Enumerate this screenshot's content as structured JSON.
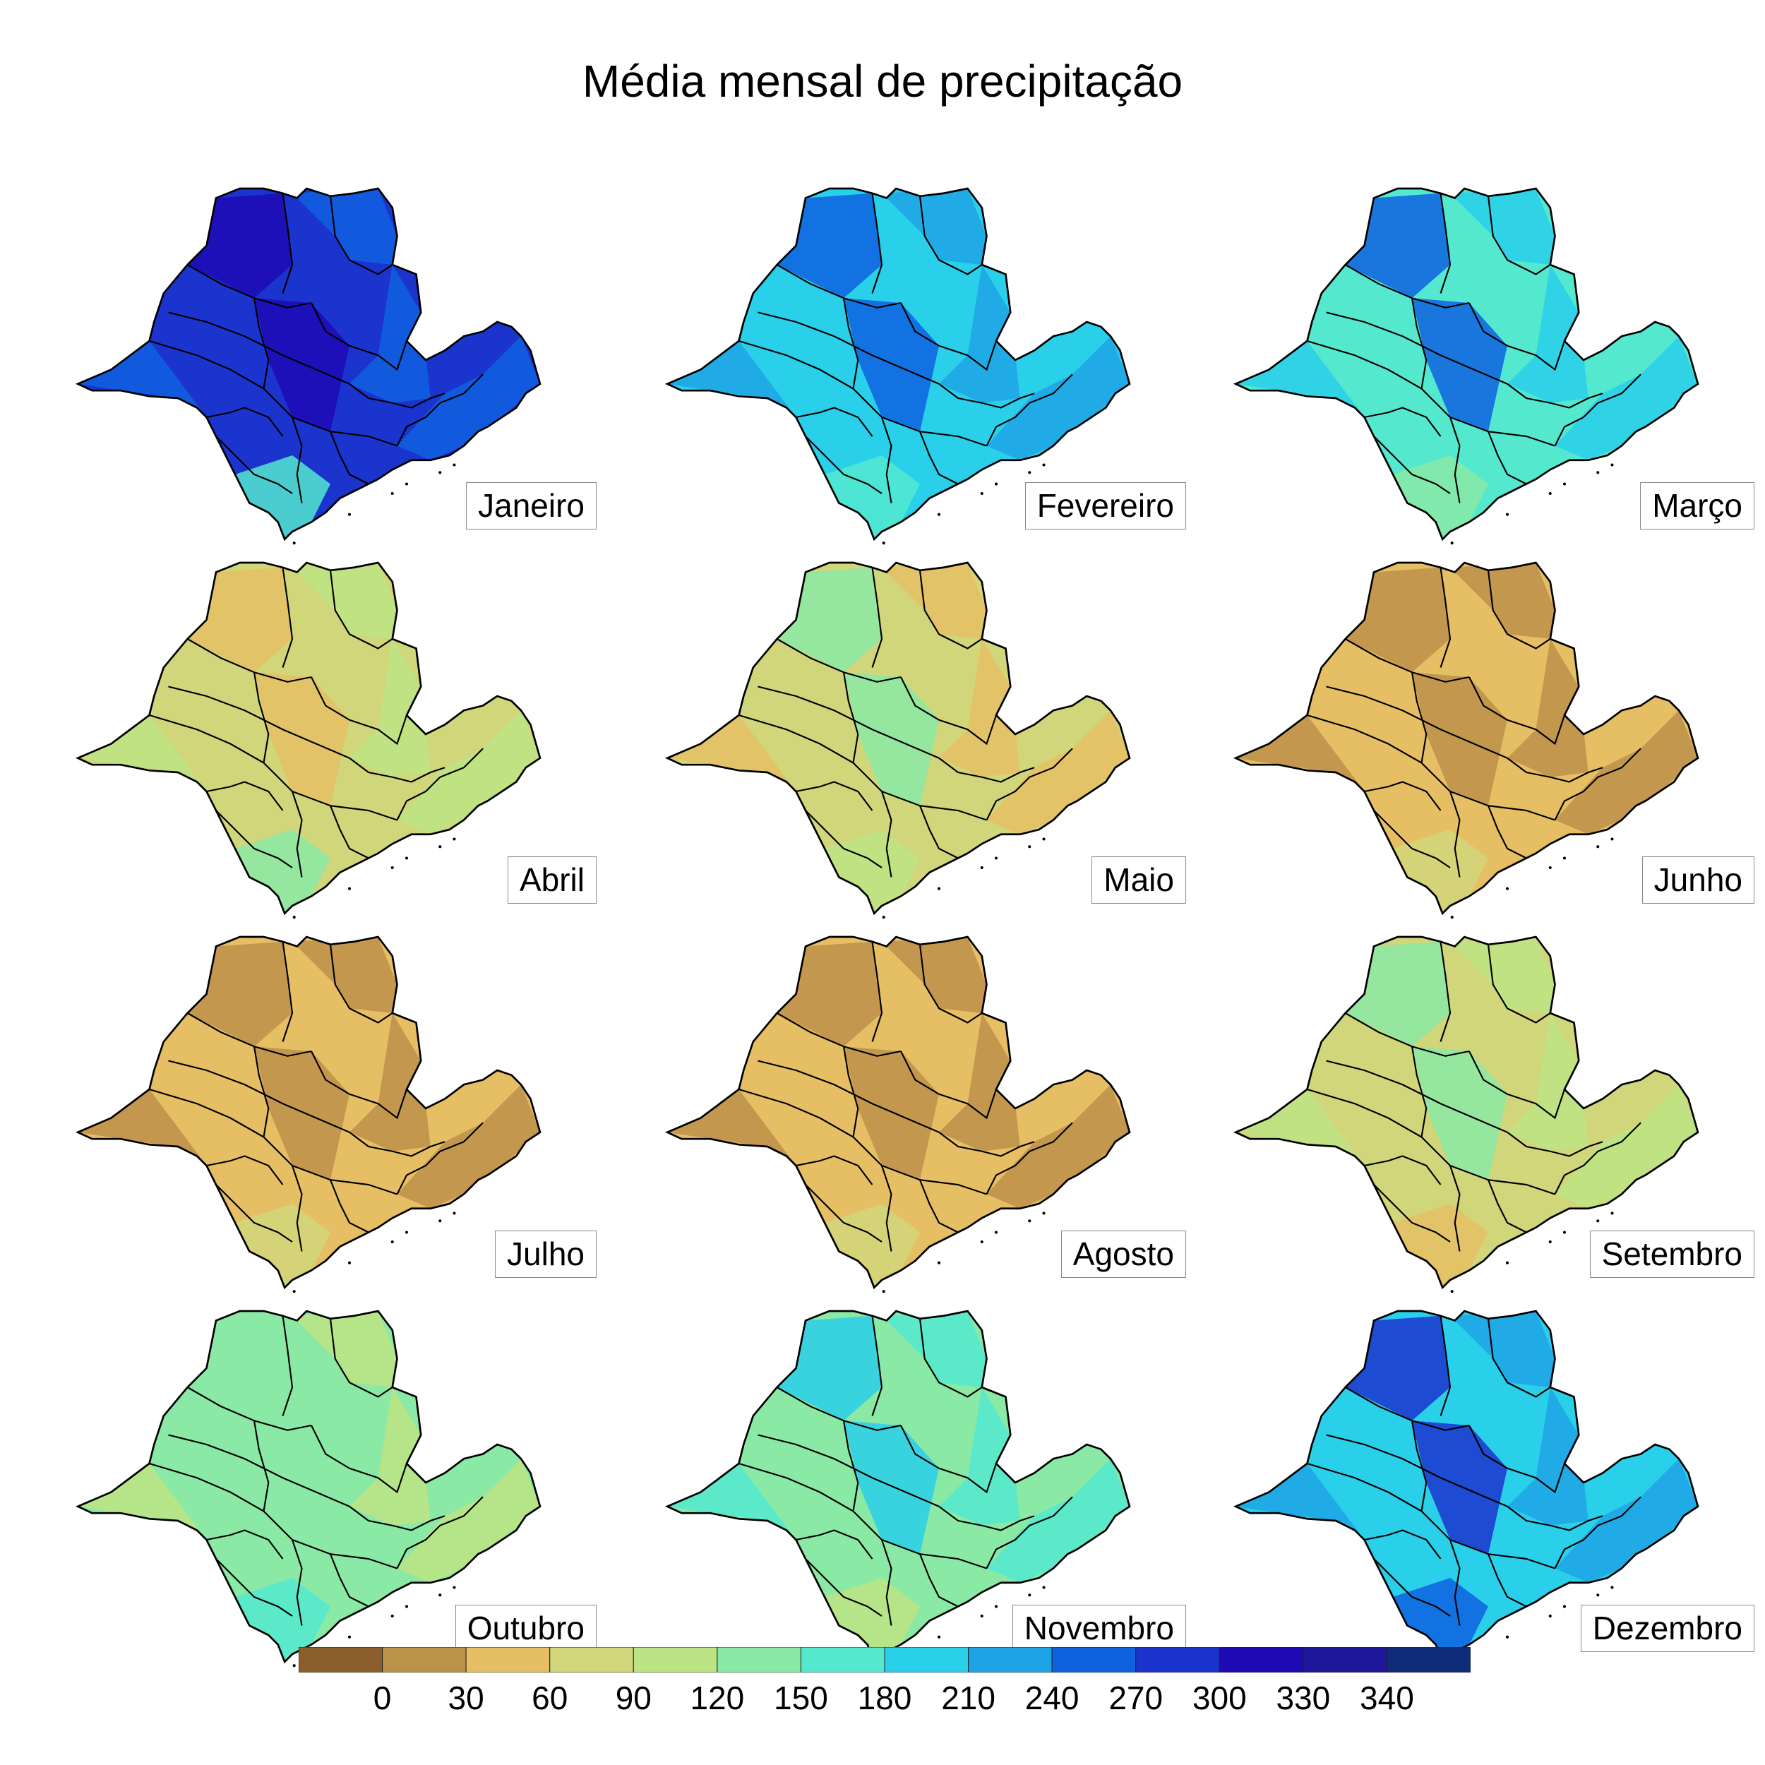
{
  "title": "Média mensal de precipitação",
  "colorbar": {
    "colors": [
      "#8b5e2b",
      "#bc914a",
      "#e6bf65",
      "#d1d67b",
      "#bde484",
      "#8be9a6",
      "#54e9cf",
      "#2acfe9",
      "#1ea4e6",
      "#0f62df",
      "#1b34cd",
      "#1f0bb5",
      "#20189a",
      "#0f2c78"
    ],
    "ticks": [
      "0",
      "30",
      "60",
      "90",
      "120",
      "150",
      "180",
      "210",
      "240",
      "270",
      "300",
      "330",
      "340"
    ]
  },
  "months": [
    {
      "name": "Janeiro",
      "primary": "#1b34cd",
      "secondary": "#0f62df",
      "accent": "#54e9cf",
      "shade": "#1f0bb5"
    },
    {
      "name": "Fevereiro",
      "primary": "#2acfe9",
      "secondary": "#1ea4e6",
      "accent": "#54e9cf",
      "shade": "#0f62df"
    },
    {
      "name": "Março",
      "primary": "#54e9cf",
      "secondary": "#2acfe9",
      "accent": "#8be9a6",
      "shade": "#0f62df"
    },
    {
      "name": "Abril",
      "primary": "#d1d67b",
      "secondary": "#bde484",
      "accent": "#8be9a6",
      "shade": "#e6bf65"
    },
    {
      "name": "Maio",
      "primary": "#d1d67b",
      "secondary": "#e6bf65",
      "accent": "#bde484",
      "shade": "#8be9a6"
    },
    {
      "name": "Junho",
      "primary": "#e6bf65",
      "secondary": "#bc914a",
      "accent": "#d1d67b",
      "shade": "#bc914a"
    },
    {
      "name": "Julho",
      "primary": "#e6bf65",
      "secondary": "#bc914a",
      "accent": "#d1d67b",
      "shade": "#bc914a"
    },
    {
      "name": "Agosto",
      "primary": "#e6bf65",
      "secondary": "#bc914a",
      "accent": "#d1d67b",
      "shade": "#bc914a"
    },
    {
      "name": "Setembro",
      "primary": "#d1d67b",
      "secondary": "#bde484",
      "accent": "#e6bf65",
      "shade": "#8be9a6"
    },
    {
      "name": "Outubro",
      "primary": "#8be9a6",
      "secondary": "#bde484",
      "accent": "#54e9cf",
      "shade": "#8be9a6"
    },
    {
      "name": "Novembro",
      "primary": "#8be9a6",
      "secondary": "#54e9cf",
      "accent": "#bde484",
      "shade": "#2acfe9"
    },
    {
      "name": "Dezembro",
      "primary": "#2acfe9",
      "secondary": "#1ea4e6",
      "accent": "#0f62df",
      "shade": "#1b34cd"
    }
  ]
}
